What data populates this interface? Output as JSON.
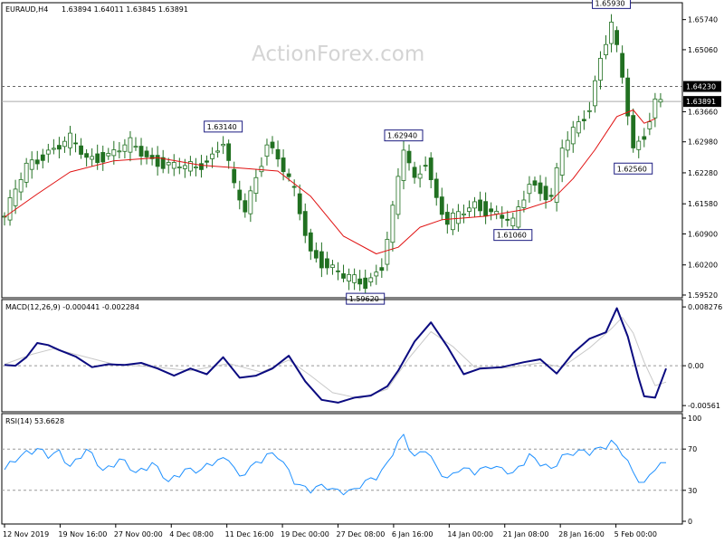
{
  "chart_data": {
    "type": "candlestick",
    "header": {
      "symbol_tf": "EURAUD,H4",
      "ohlc": "1.63894 1.64011 1.63845 1.63891"
    },
    "watermark": "ActionForex.com",
    "price_axis": {
      "range": [
        1.5952,
        1.6606
      ],
      "ticks": [
        "1.65740",
        "1.65060",
        "1.64230",
        "1.63660",
        "1.62980",
        "1.62280",
        "1.61580",
        "1.60900",
        "1.60200",
        "1.59520"
      ],
      "tick_values": [
        1.6574,
        1.6506,
        1.6423,
        1.6366,
        1.6298,
        1.6228,
        1.6158,
        1.609,
        1.602,
        1.5952
      ],
      "current_price": "1.63891",
      "current_value": 1.63891,
      "dashed_level": "1.64230",
      "dashed_value": 1.6423
    },
    "x_axis": {
      "labels": [
        "12 Nov 2019",
        "19 Nov 16:00",
        "27 Nov 00:00",
        "4 Dec 08:00",
        "11 Dec 16:00",
        "19 Dec 00:00",
        "27 Dec 08:00",
        "6 Jan 16:00",
        "14 Jan 00:00",
        "21 Jan 08:00",
        "28 Jan 16:00",
        "5 Feb 00:00"
      ]
    },
    "annotations": [
      {
        "text": "1.63140",
        "value": 1.6314,
        "bar": 40,
        "pos": "above"
      },
      {
        "text": "1.62940",
        "value": 1.6294,
        "bar": 73,
        "pos": "above"
      },
      {
        "text": "1.59620",
        "value": 1.5962,
        "bar": 66,
        "pos": "below"
      },
      {
        "text": "1.61060",
        "value": 1.6106,
        "bar": 93,
        "pos": "below"
      },
      {
        "text": "1.65930",
        "value": 1.6593,
        "bar": 111,
        "pos": "above"
      },
      {
        "text": "1.62560",
        "value": 1.6256,
        "bar": 115,
        "pos": "below"
      }
    ],
    "price_path": [
      {
        "bar": 0,
        "value": 1.613
      },
      {
        "bar": 4,
        "value": 1.624
      },
      {
        "bar": 8,
        "value": 1.628
      },
      {
        "bar": 12,
        "value": 1.63
      },
      {
        "bar": 15,
        "value": 1.626
      },
      {
        "bar": 19,
        "value": 1.627
      },
      {
        "bar": 23,
        "value": 1.629
      },
      {
        "bar": 27,
        "value": 1.626
      },
      {
        "bar": 31,
        "value": 1.624
      },
      {
        "bar": 35,
        "value": 1.624
      },
      {
        "bar": 38,
        "value": 1.627
      },
      {
        "bar": 40,
        "value": 1.63
      },
      {
        "bar": 42,
        "value": 1.619
      },
      {
        "bar": 44,
        "value": 1.614
      },
      {
        "bar": 46,
        "value": 1.622
      },
      {
        "bar": 48,
        "value": 1.63
      },
      {
        "bar": 50,
        "value": 1.626
      },
      {
        "bar": 53,
        "value": 1.618
      },
      {
        "bar": 56,
        "value": 1.605
      },
      {
        "bar": 59,
        "value": 1.602
      },
      {
        "bar": 62,
        "value": 1.599
      },
      {
        "bar": 66,
        "value": 1.598
      },
      {
        "bar": 69,
        "value": 1.602
      },
      {
        "bar": 71,
        "value": 1.614
      },
      {
        "bar": 73,
        "value": 1.628
      },
      {
        "bar": 75,
        "value": 1.621
      },
      {
        "bar": 77,
        "value": 1.626
      },
      {
        "bar": 79,
        "value": 1.617
      },
      {
        "bar": 81,
        "value": 1.611
      },
      {
        "bar": 83,
        "value": 1.613
      },
      {
        "bar": 86,
        "value": 1.616
      },
      {
        "bar": 89,
        "value": 1.614
      },
      {
        "bar": 93,
        "value": 1.611
      },
      {
        "bar": 96,
        "value": 1.621
      },
      {
        "bar": 98,
        "value": 1.619
      },
      {
        "bar": 100,
        "value": 1.617
      },
      {
        "bar": 102,
        "value": 1.628
      },
      {
        "bar": 104,
        "value": 1.632
      },
      {
        "bar": 107,
        "value": 1.638
      },
      {
        "bar": 109,
        "value": 1.649
      },
      {
        "bar": 111,
        "value": 1.656
      },
      {
        "bar": 113,
        "value": 1.644
      },
      {
        "bar": 115,
        "value": 1.628
      },
      {
        "bar": 117,
        "value": 1.632
      },
      {
        "bar": 119,
        "value": 1.639
      }
    ],
    "moving_average": [
      {
        "bar": 0,
        "value": 1.6128
      },
      {
        "bar": 6,
        "value": 1.618
      },
      {
        "bar": 12,
        "value": 1.623
      },
      {
        "bar": 20,
        "value": 1.6255
      },
      {
        "bar": 28,
        "value": 1.6262
      },
      {
        "bar": 36,
        "value": 1.6245
      },
      {
        "bar": 44,
        "value": 1.6238
      },
      {
        "bar": 50,
        "value": 1.6232
      },
      {
        "bar": 56,
        "value": 1.6175
      },
      {
        "bar": 62,
        "value": 1.6085
      },
      {
        "bar": 68,
        "value": 1.6045
      },
      {
        "bar": 72,
        "value": 1.606
      },
      {
        "bar": 76,
        "value": 1.6105
      },
      {
        "bar": 80,
        "value": 1.6122
      },
      {
        "bar": 88,
        "value": 1.613
      },
      {
        "bar": 95,
        "value": 1.6145
      },
      {
        "bar": 100,
        "value": 1.6165
      },
      {
        "bar": 104,
        "value": 1.6215
      },
      {
        "bar": 108,
        "value": 1.628
      },
      {
        "bar": 112,
        "value": 1.6355
      },
      {
        "bar": 115,
        "value": 1.637
      },
      {
        "bar": 117,
        "value": 1.634
      },
      {
        "bar": 119,
        "value": 1.635
      }
    ],
    "macd": {
      "header": "MACD(12,26,9) -0.000441 -0.002284",
      "ticks": [
        "0.008276",
        "0.00",
        "-0.00561"
      ],
      "tick_values": [
        0.008276,
        0.0,
        -0.00561
      ],
      "range": [
        -0.0061,
        0.0088
      ],
      "line": [
        {
          "bar": 0,
          "value": 0.0001
        },
        {
          "bar": 2,
          "value": 0.0
        },
        {
          "bar": 4,
          "value": 0.0012
        },
        {
          "bar": 6,
          "value": 0.0032
        },
        {
          "bar": 8,
          "value": 0.0029
        },
        {
          "bar": 10,
          "value": 0.0022
        },
        {
          "bar": 13,
          "value": 0.0013
        },
        {
          "bar": 16,
          "value": -0.0002
        },
        {
          "bar": 19,
          "value": 0.0002
        },
        {
          "bar": 22,
          "value": 0.0001
        },
        {
          "bar": 25,
          "value": 0.0004
        },
        {
          "bar": 28,
          "value": -0.0004
        },
        {
          "bar": 31,
          "value": -0.0014
        },
        {
          "bar": 34,
          "value": -0.0004
        },
        {
          "bar": 37,
          "value": -0.0012
        },
        {
          "bar": 40,
          "value": 0.0012
        },
        {
          "bar": 43,
          "value": -0.0017
        },
        {
          "bar": 46,
          "value": -0.0014
        },
        {
          "bar": 49,
          "value": -0.0004
        },
        {
          "bar": 52,
          "value": 0.0014
        },
        {
          "bar": 55,
          "value": -0.0022
        },
        {
          "bar": 58,
          "value": -0.0048
        },
        {
          "bar": 61,
          "value": -0.0052
        },
        {
          "bar": 64,
          "value": -0.0045
        },
        {
          "bar": 67,
          "value": -0.0042
        },
        {
          "bar": 70,
          "value": -0.0029
        },
        {
          "bar": 72,
          "value": -0.0007
        },
        {
          "bar": 75,
          "value": 0.0034
        },
        {
          "bar": 78,
          "value": 0.0061
        },
        {
          "bar": 81,
          "value": 0.0027
        },
        {
          "bar": 84,
          "value": -0.0012
        },
        {
          "bar": 87,
          "value": -0.0004
        },
        {
          "bar": 91,
          "value": -0.0002
        },
        {
          "bar": 95,
          "value": 0.0005
        },
        {
          "bar": 98,
          "value": 0.0009
        },
        {
          "bar": 101,
          "value": -0.0011
        },
        {
          "bar": 104,
          "value": 0.0018
        },
        {
          "bar": 107,
          "value": 0.0038
        },
        {
          "bar": 110,
          "value": 0.0047
        },
        {
          "bar": 112,
          "value": 0.0081
        },
        {
          "bar": 114,
          "value": 0.0041
        },
        {
          "bar": 116,
          "value": -0.0018
        },
        {
          "bar": 117,
          "value": -0.0043
        },
        {
          "bar": 119,
          "value": -0.0045
        },
        {
          "bar": 121,
          "value": -0.0004
        }
      ],
      "signal": [
        {
          "bar": 0,
          "value": 0.0002
        },
        {
          "bar": 5,
          "value": 0.0016
        },
        {
          "bar": 9,
          "value": 0.0024
        },
        {
          "bar": 14,
          "value": 0.0014
        },
        {
          "bar": 20,
          "value": 0.0002
        },
        {
          "bar": 28,
          "value": -0.0002
        },
        {
          "bar": 34,
          "value": -0.0007
        },
        {
          "bar": 41,
          "value": 0.0003
        },
        {
          "bar": 47,
          "value": -0.0009
        },
        {
          "bar": 52,
          "value": 0.0008
        },
        {
          "bar": 56,
          "value": -0.0014
        },
        {
          "bar": 60,
          "value": -0.0038
        },
        {
          "bar": 65,
          "value": -0.0046
        },
        {
          "bar": 70,
          "value": -0.0033
        },
        {
          "bar": 74,
          "value": 0.0011
        },
        {
          "bar": 78,
          "value": 0.0048
        },
        {
          "bar": 82,
          "value": 0.0027
        },
        {
          "bar": 86,
          "value": -0.0002
        },
        {
          "bar": 92,
          "value": -0.0003
        },
        {
          "bar": 98,
          "value": 0.0004
        },
        {
          "bar": 102,
          "value": -0.0002
        },
        {
          "bar": 107,
          "value": 0.0025
        },
        {
          "bar": 111,
          "value": 0.0052
        },
        {
          "bar": 113,
          "value": 0.0068
        },
        {
          "bar": 115,
          "value": 0.0046
        },
        {
          "bar": 117,
          "value": 0.0005
        },
        {
          "bar": 119,
          "value": -0.0028
        },
        {
          "bar": 121,
          "value": -0.0023
        }
      ]
    },
    "rsi": {
      "header": "RSI(14) 53.6628",
      "ticks": [
        "100",
        "70",
        "30",
        "0"
      ],
      "tick_values": [
        100,
        70,
        30,
        0
      ],
      "range": [
        0,
        100
      ],
      "line": [
        {
          "bar": 0,
          "value": 50
        },
        {
          "bar": 2,
          "value": 58
        },
        {
          "bar": 4,
          "value": 67
        },
        {
          "bar": 6,
          "value": 72
        },
        {
          "bar": 8,
          "value": 62
        },
        {
          "bar": 10,
          "value": 66
        },
        {
          "bar": 12,
          "value": 55
        },
        {
          "bar": 15,
          "value": 68
        },
        {
          "bar": 18,
          "value": 50
        },
        {
          "bar": 21,
          "value": 60
        },
        {
          "bar": 24,
          "value": 46
        },
        {
          "bar": 27,
          "value": 58
        },
        {
          "bar": 30,
          "value": 36
        },
        {
          "bar": 33,
          "value": 52
        },
        {
          "bar": 36,
          "value": 48
        },
        {
          "bar": 39,
          "value": 60
        },
        {
          "bar": 41,
          "value": 63
        },
        {
          "bar": 43,
          "value": 40
        },
        {
          "bar": 45,
          "value": 52
        },
        {
          "bar": 48,
          "value": 66
        },
        {
          "bar": 50,
          "value": 62
        },
        {
          "bar": 53,
          "value": 40
        },
        {
          "bar": 56,
          "value": 30
        },
        {
          "bar": 59,
          "value": 33
        },
        {
          "bar": 62,
          "value": 30
        },
        {
          "bar": 64,
          "value": 28
        },
        {
          "bar": 66,
          "value": 38
        },
        {
          "bar": 68,
          "value": 45
        },
        {
          "bar": 70,
          "value": 55
        },
        {
          "bar": 72,
          "value": 75
        },
        {
          "bar": 73,
          "value": 82
        },
        {
          "bar": 75,
          "value": 64
        },
        {
          "bar": 77,
          "value": 70
        },
        {
          "bar": 79,
          "value": 50
        },
        {
          "bar": 81,
          "value": 42
        },
        {
          "bar": 83,
          "value": 52
        },
        {
          "bar": 86,
          "value": 46
        },
        {
          "bar": 89,
          "value": 56
        },
        {
          "bar": 93,
          "value": 44
        },
        {
          "bar": 96,
          "value": 66
        },
        {
          "bar": 98,
          "value": 56
        },
        {
          "bar": 100,
          "value": 48
        },
        {
          "bar": 102,
          "value": 64
        },
        {
          "bar": 104,
          "value": 68
        },
        {
          "bar": 107,
          "value": 65
        },
        {
          "bar": 109,
          "value": 72
        },
        {
          "bar": 111,
          "value": 78
        },
        {
          "bar": 113,
          "value": 65
        },
        {
          "bar": 115,
          "value": 46
        },
        {
          "bar": 117,
          "value": 38
        },
        {
          "bar": 119,
          "value": 52
        },
        {
          "bar": 121,
          "value": 54
        }
      ]
    },
    "colors": {
      "background": "#ffffff",
      "candle": "#217021",
      "moving_average": "#e01010",
      "macd_line": "#0b0b80",
      "signal_line": "#c8c8c8",
      "rsi_line": "#1e90ff",
      "grid": "#999999",
      "border": "#000000",
      "watermark": "#d4d4d4",
      "price_tag_bg": "#000000",
      "price_tag_fg": "#ffffff"
    }
  }
}
